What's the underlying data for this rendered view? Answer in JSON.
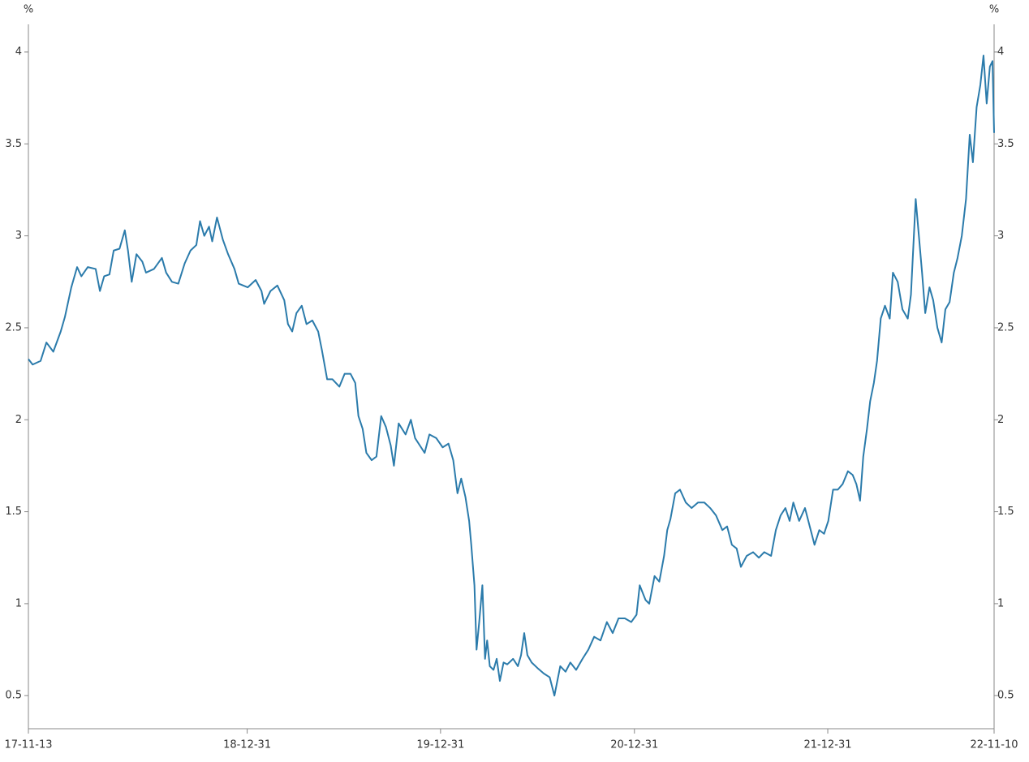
{
  "chart_data": {
    "type": "line",
    "y_label": "%",
    "y2_label": "%",
    "xlim": [
      "17-11-13",
      "22-11-10"
    ],
    "xticks": [
      "17-11-13",
      "18-12-31",
      "19-12-31",
      "20-12-31",
      "21-12-31",
      "22-11-10"
    ],
    "ylim": [
      0.32,
      4.15
    ],
    "yticks": [
      0.5,
      1,
      1.5,
      2,
      2.5,
      3,
      3.5,
      4
    ],
    "grid": false,
    "series": [
      {
        "color": "#2b7bab",
        "x": [
          "17-11-13",
          "17-11-21",
          "17-12-06",
          "17-12-17",
          "17-12-30",
          "18-01-13",
          "18-01-21",
          "18-02-02",
          "18-02-13",
          "18-02-21",
          "18-03-05",
          "18-03-20",
          "18-03-28",
          "18-04-05",
          "18-04-15",
          "18-04-23",
          "18-05-04",
          "18-05-14",
          "18-05-20",
          "18-05-27",
          "18-06-05",
          "18-06-16",
          "18-06-23",
          "18-07-08",
          "18-07-23",
          "18-07-31",
          "18-08-11",
          "18-08-23",
          "18-09-04",
          "18-09-15",
          "18-09-26",
          "18-10-03",
          "18-10-11",
          "18-10-20",
          "18-10-26",
          "18-11-04",
          "18-11-15",
          "18-11-25",
          "18-12-07",
          "18-12-15",
          "19-01-01",
          "19-01-16",
          "19-01-27",
          "19-02-01",
          "19-02-13",
          "19-02-26",
          "19-03-11",
          "19-03-18",
          "19-03-26",
          "19-04-03",
          "19-04-13",
          "19-04-22",
          "19-05-03",
          "19-05-14",
          "19-05-21",
          "19-05-31",
          "19-06-10",
          "19-06-23",
          "19-07-03",
          "19-07-14",
          "19-07-23",
          "19-07-29",
          "19-08-06",
          "19-08-13",
          "19-08-23",
          "19-09-01",
          "19-09-10",
          "19-09-19",
          "19-09-28",
          "19-10-04",
          "19-10-13",
          "19-10-26",
          "19-11-05",
          "19-11-13",
          "19-11-22",
          "19-12-01",
          "19-12-10",
          "19-12-23",
          "20-01-04",
          "20-01-15",
          "20-01-24",
          "20-02-01",
          "20-02-08",
          "20-02-16",
          "20-02-23",
          "20-02-27",
          "20-03-04",
          "20-03-08",
          "20-03-13",
          "20-03-19",
          "20-03-24",
          "20-03-28",
          "20-04-02",
          "20-04-09",
          "20-04-15",
          "20-04-21",
          "20-04-28",
          "20-05-05",
          "20-05-16",
          "20-05-25",
          "20-05-31",
          "20-06-06",
          "20-06-12",
          "20-06-20",
          "20-07-01",
          "20-07-13",
          "20-07-24",
          "20-08-02",
          "20-08-13",
          "20-08-23",
          "20-09-01",
          "20-09-12",
          "20-09-24",
          "20-10-05",
          "20-10-16",
          "20-10-28",
          "20-11-09",
          "20-11-20",
          "20-12-01",
          "20-12-13",
          "20-12-25",
          "21-01-04",
          "21-01-10",
          "21-01-21",
          "21-01-28",
          "21-02-07",
          "21-02-16",
          "21-02-25",
          "21-03-03",
          "21-03-09",
          "21-03-18",
          "21-03-27",
          "21-04-07",
          "21-04-18",
          "21-04-30",
          "21-05-12",
          "21-05-23",
          "21-06-03",
          "21-06-15",
          "21-06-24",
          "21-07-03",
          "21-07-12",
          "21-07-20",
          "21-07-31",
          "21-08-12",
          "21-08-23",
          "21-09-02",
          "21-09-15",
          "21-09-24",
          "21-10-03",
          "21-10-12",
          "21-10-20",
          "21-10-27",
          "21-11-07",
          "21-11-18",
          "21-11-27",
          "21-12-06",
          "21-12-15",
          "21-12-24",
          "22-01-01",
          "22-01-10",
          "22-01-19",
          "22-01-28",
          "22-02-07",
          "22-02-16",
          "22-02-23",
          "22-03-02",
          "22-03-08",
          "22-03-15",
          "22-03-21",
          "22-03-28",
          "22-04-03",
          "22-04-10",
          "22-04-18",
          "22-04-27",
          "22-05-03",
          "22-05-12",
          "22-05-21",
          "22-05-31",
          "22-06-06",
          "22-06-15",
          "22-06-21",
          "22-06-27",
          "22-07-03",
          "22-07-11",
          "22-07-18",
          "22-07-26",
          "22-08-03",
          "22-08-10",
          "22-08-18",
          "22-08-26",
          "22-09-02",
          "22-09-10",
          "22-09-18",
          "22-09-25",
          "22-10-01",
          "22-10-08",
          "22-10-15",
          "22-10-21",
          "22-10-27",
          "22-11-02",
          "22-11-07",
          "22-11-10"
        ],
        "values": [
          2.33,
          2.3,
          2.32,
          2.42,
          2.37,
          2.48,
          2.56,
          2.72,
          2.83,
          2.78,
          2.83,
          2.82,
          2.7,
          2.78,
          2.79,
          2.92,
          2.93,
          3.03,
          2.92,
          2.75,
          2.9,
          2.86,
          2.8,
          2.82,
          2.88,
          2.8,
          2.75,
          2.74,
          2.85,
          2.92,
          2.95,
          3.08,
          3.0,
          3.05,
          2.97,
          3.1,
          2.98,
          2.9,
          2.82,
          2.74,
          2.72,
          2.76,
          2.7,
          2.63,
          2.7,
          2.73,
          2.65,
          2.52,
          2.48,
          2.58,
          2.62,
          2.52,
          2.54,
          2.48,
          2.38,
          2.22,
          2.22,
          2.18,
          2.25,
          2.25,
          2.2,
          2.02,
          1.95,
          1.82,
          1.78,
          1.8,
          2.02,
          1.96,
          1.86,
          1.75,
          1.98,
          1.92,
          2.0,
          1.9,
          1.86,
          1.82,
          1.92,
          1.9,
          1.85,
          1.87,
          1.78,
          1.6,
          1.68,
          1.58,
          1.45,
          1.32,
          1.1,
          0.75,
          0.9,
          1.1,
          0.7,
          0.8,
          0.66,
          0.64,
          0.7,
          0.58,
          0.68,
          0.67,
          0.7,
          0.66,
          0.72,
          0.84,
          0.72,
          0.68,
          0.65,
          0.62,
          0.6,
          0.5,
          0.66,
          0.63,
          0.68,
          0.64,
          0.7,
          0.75,
          0.82,
          0.8,
          0.9,
          0.84,
          0.92,
          0.92,
          0.9,
          0.94,
          1.1,
          1.02,
          1.0,
          1.15,
          1.12,
          1.26,
          1.4,
          1.46,
          1.6,
          1.62,
          1.55,
          1.52,
          1.55,
          1.55,
          1.52,
          1.48,
          1.4,
          1.42,
          1.32,
          1.3,
          1.2,
          1.26,
          1.28,
          1.25,
          1.28,
          1.26,
          1.4,
          1.48,
          1.52,
          1.45,
          1.55,
          1.45,
          1.52,
          1.42,
          1.32,
          1.4,
          1.38,
          1.45,
          1.62,
          1.62,
          1.65,
          1.72,
          1.7,
          1.65,
          1.56,
          1.8,
          1.95,
          2.1,
          2.2,
          2.32,
          2.55,
          2.62,
          2.55,
          2.8,
          2.75,
          2.6,
          2.55,
          2.68,
          3.2,
          3.0,
          2.8,
          2.58,
          2.72,
          2.65,
          2.5,
          2.42,
          2.6,
          2.64,
          2.8,
          2.88,
          3.0,
          3.2,
          3.55,
          3.4,
          3.7,
          3.82,
          3.98,
          3.72,
          3.92,
          3.95,
          3.56
        ]
      }
    ]
  }
}
